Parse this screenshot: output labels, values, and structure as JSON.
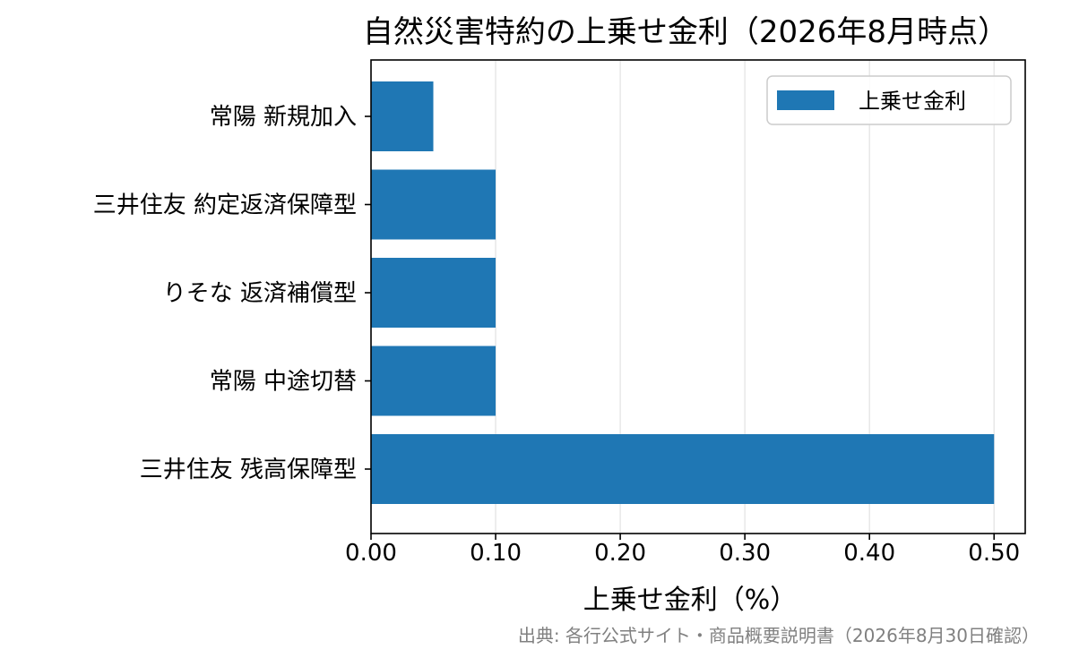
{
  "chart_data": {
    "type": "bar",
    "orientation": "horizontal",
    "title": "自然災害特約の上乗せ金利（2026年8月時点）",
    "xlabel": "上乗せ金利（%）",
    "ylabel": "",
    "categories": [
      "常陽 新規加入",
      "三井住友 約定返済保障型",
      "りそな 返済補償型",
      "常陽 中途切替",
      "三井住友 残高保障型"
    ],
    "series": [
      {
        "name": "上乗せ金利",
        "values": [
          0.05,
          0.1,
          0.1,
          0.1,
          0.5
        ],
        "color": "#1f77b4"
      }
    ],
    "xlim": [
      0,
      0.525
    ],
    "xticks": [
      "0.00",
      "0.10",
      "0.20",
      "0.30",
      "0.40",
      "0.50"
    ],
    "grid": "x",
    "legend_position": "top-right",
    "source": "出典: 各行公式サイト・商品概要説明書（2026年8月30日確認）"
  },
  "colors": {
    "bar": "#1f77b4",
    "grid": "#e6e6e6",
    "source_text": "#808080"
  }
}
